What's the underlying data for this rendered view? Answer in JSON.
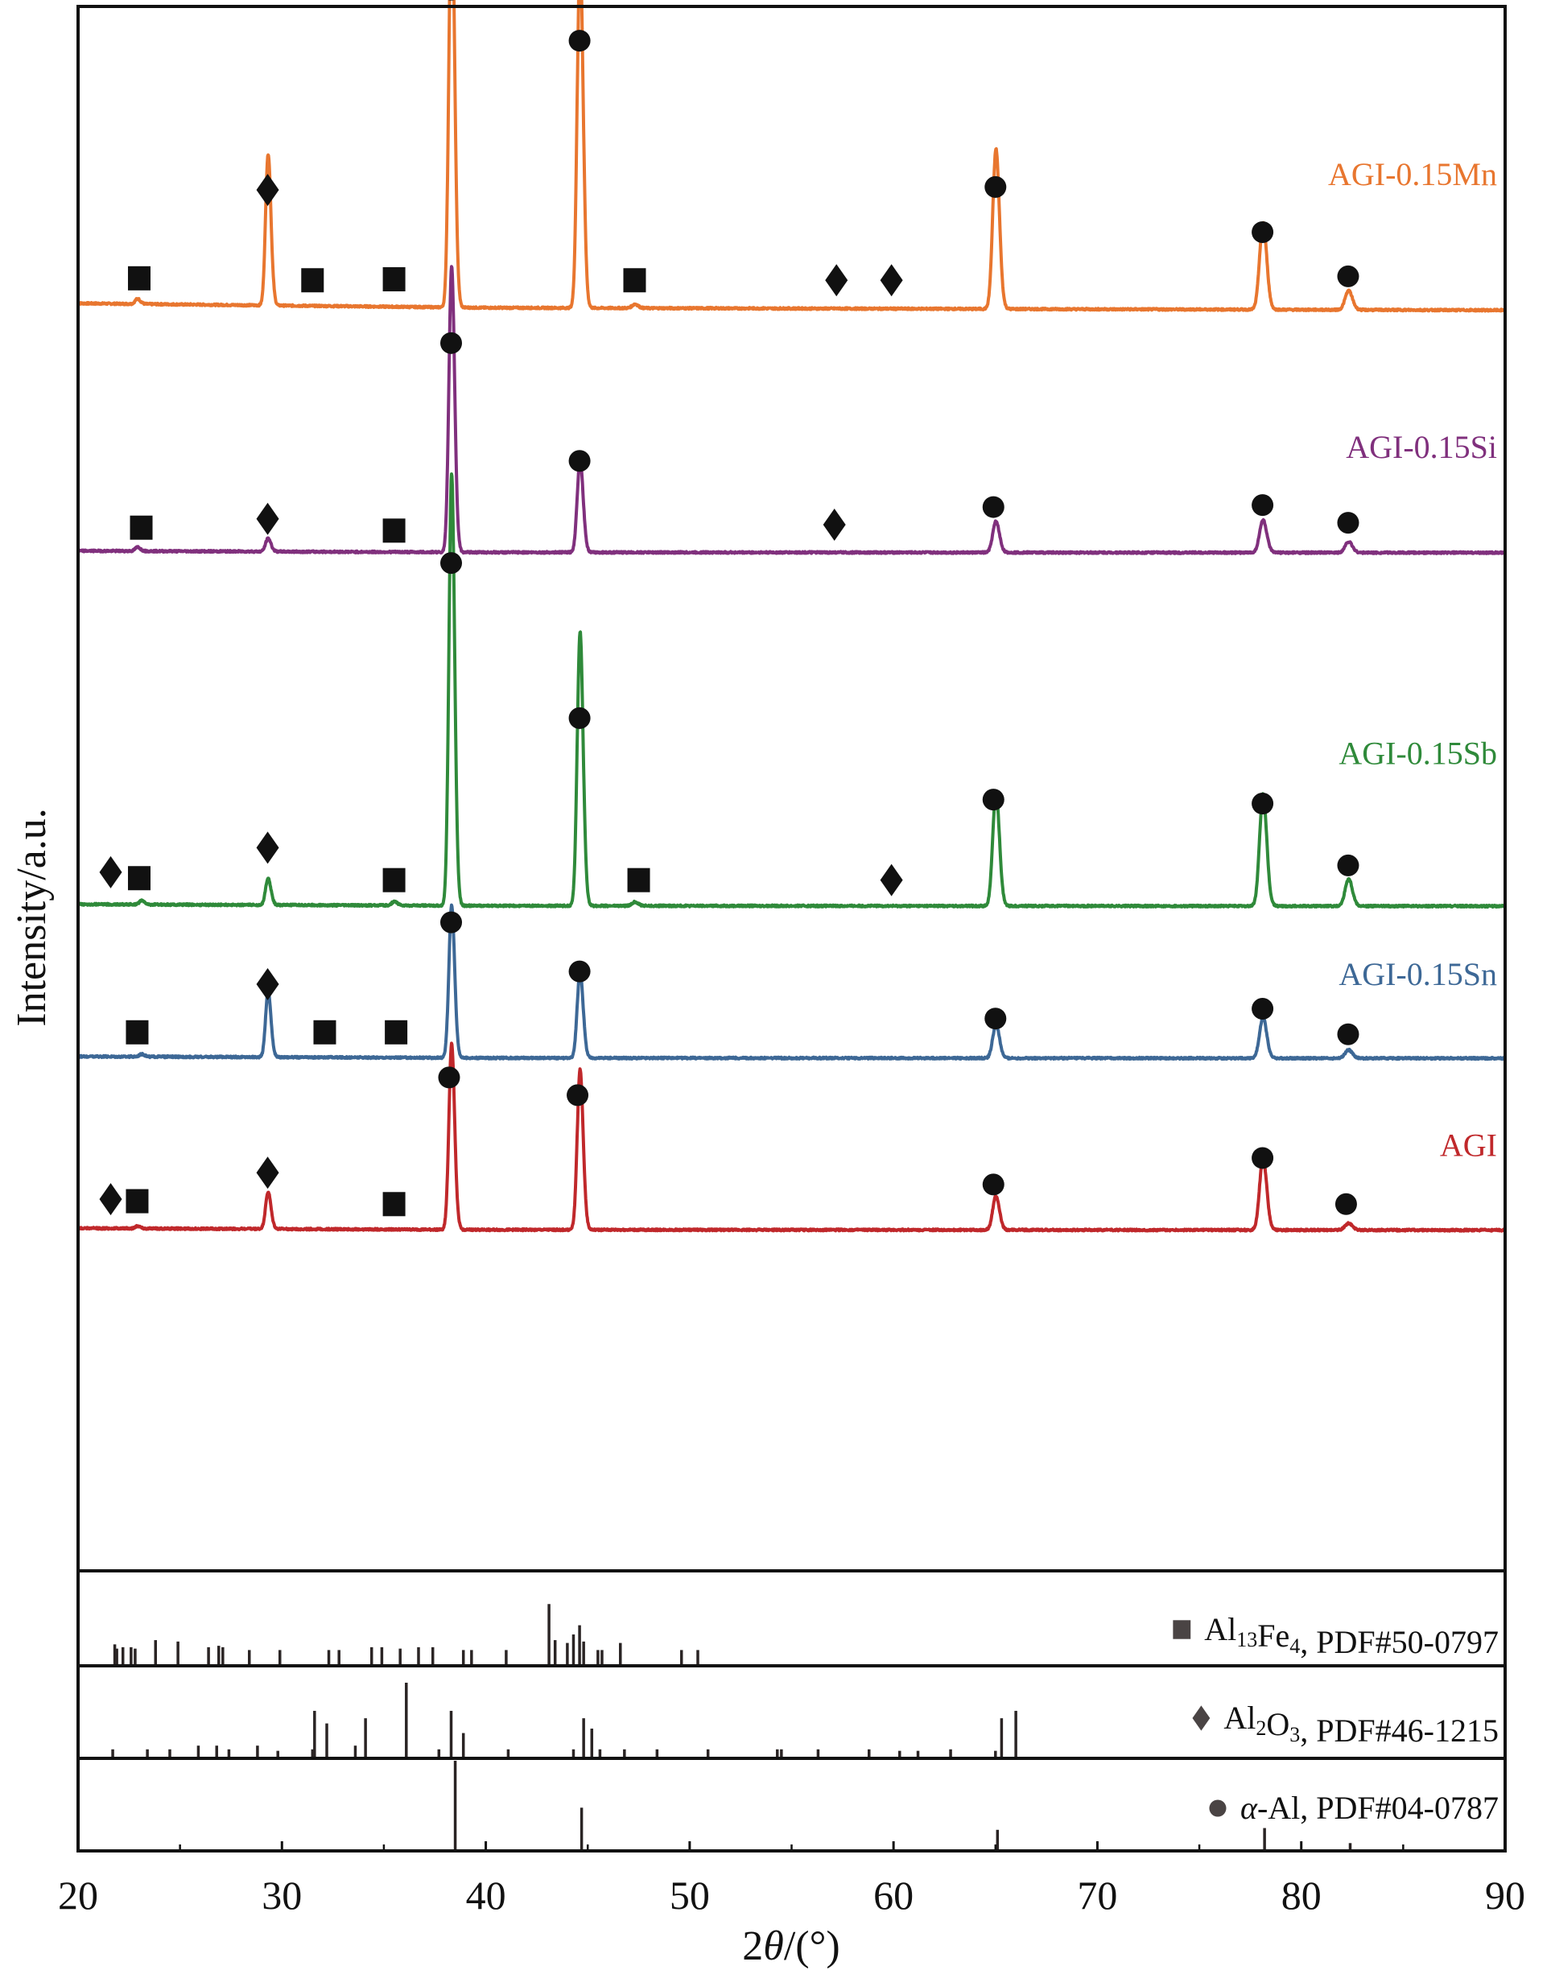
{
  "chart_data": {
    "type": "line",
    "title": "",
    "xlabel": "2θ/(°)",
    "xlabel_parts": {
      "pre": "2",
      "italic": "θ",
      "post": "/(°)"
    },
    "ylabel": "Intensity/a.u.",
    "xlim": [
      20,
      90
    ],
    "x_ticks": [
      20,
      30,
      40,
      50,
      60,
      70,
      80,
      90
    ],
    "y_ticks": [],
    "grid": false,
    "legend": "none; series labelled inline at right of each trace; phase keys in bottom reference panels",
    "series": [
      {
        "name": "AGI-0.15Mn",
        "color": "#e8762f",
        "baseline_offset": 4,
        "slope": -0.35,
        "peaks": [
          {
            "x": 22.9,
            "h": 0.4
          },
          {
            "x": 29.3,
            "h": 11.5
          },
          {
            "x": 38.3,
            "h": 31.5
          },
          {
            "x": 44.6,
            "h": 26.5
          },
          {
            "x": 47.3,
            "h": 0.3
          },
          {
            "x": 65.0,
            "h": 11.8
          },
          {
            "x": 78.1,
            "h": 6.4
          },
          {
            "x": 82.3,
            "h": 1.4
          }
        ],
        "markers": [
          {
            "type": "square",
            "x": 23.0,
            "y": 2.9
          },
          {
            "type": "diamond",
            "x": 29.3,
            "y": 11.9
          },
          {
            "type": "square",
            "x": 31.5,
            "y": 2.7
          },
          {
            "type": "square",
            "x": 35.5,
            "y": 2.8
          },
          {
            "type": "circle",
            "x": 38.3,
            "y": 32.3
          },
          {
            "type": "circle",
            "x": 44.6,
            "y": 27.1
          },
          {
            "type": "square",
            "x": 47.3,
            "y": 2.7
          },
          {
            "type": "diamond",
            "x": 57.2,
            "y": 2.7
          },
          {
            "type": "diamond",
            "x": 59.9,
            "y": 2.7
          },
          {
            "type": "circle",
            "x": 65.0,
            "y": 12.2
          },
          {
            "type": "circle",
            "x": 78.1,
            "y": 7.6
          },
          {
            "type": "circle",
            "x": 82.3,
            "y": 3.1
          }
        ]
      },
      {
        "name": "AGI-0.15Si",
        "color": "#80307d",
        "baseline_offset": -21,
        "slope": -0.05,
        "peaks": [
          {
            "x": 22.9,
            "h": 0.3
          },
          {
            "x": 29.3,
            "h": 1.0
          },
          {
            "x": 38.3,
            "h": 21.5
          },
          {
            "x": 44.6,
            "h": 7.0
          },
          {
            "x": 65.0,
            "h": 2.3
          },
          {
            "x": 78.1,
            "h": 2.4
          },
          {
            "x": 82.3,
            "h": 0.8
          }
        ],
        "markers": [
          {
            "type": "square",
            "x": 23.1,
            "y": 2.5
          },
          {
            "type": "diamond",
            "x": 29.3,
            "y": 3.4
          },
          {
            "type": "square",
            "x": 35.5,
            "y": 2.2
          },
          {
            "type": "circle",
            "x": 38.3,
            "y": 21.3
          },
          {
            "type": "circle",
            "x": 44.6,
            "y": 9.3
          },
          {
            "type": "diamond",
            "x": 57.1,
            "y": 2.8
          },
          {
            "type": "circle",
            "x": 64.9,
            "y": 4.6
          },
          {
            "type": "circle",
            "x": 78.1,
            "y": 4.8
          },
          {
            "type": "circle",
            "x": 82.3,
            "y": 3.0
          }
        ]
      },
      {
        "name": "AGI-0.15Sb",
        "color": "#2f8a3a",
        "baseline_offset": -57,
        "slope": -0.05,
        "peaks": [
          {
            "x": 23.1,
            "h": 0.3
          },
          {
            "x": 29.3,
            "h": 2.0
          },
          {
            "x": 35.5,
            "h": 0.3
          },
          {
            "x": 38.3,
            "h": 32.5
          },
          {
            "x": 44.6,
            "h": 20.5
          },
          {
            "x": 47.3,
            "h": 0.3
          },
          {
            "x": 65.0,
            "h": 8.5
          },
          {
            "x": 78.1,
            "h": 8.2
          },
          {
            "x": 82.3,
            "h": 2.0
          }
        ],
        "markers": [
          {
            "type": "diamond",
            "x": 21.6,
            "y": 3.4
          },
          {
            "type": "square",
            "x": 23.0,
            "y": 2.8
          },
          {
            "type": "diamond",
            "x": 29.3,
            "y": 5.9
          },
          {
            "type": "square",
            "x": 35.5,
            "y": 2.6
          },
          {
            "type": "circle",
            "x": 38.3,
            "y": 34.9
          },
          {
            "type": "circle",
            "x": 44.6,
            "y": 19.1
          },
          {
            "type": "square",
            "x": 47.5,
            "y": 2.6
          },
          {
            "type": "diamond",
            "x": 59.9,
            "y": 2.6
          },
          {
            "type": "circle",
            "x": 64.9,
            "y": 10.8
          },
          {
            "type": "circle",
            "x": 78.1,
            "y": 10.4
          },
          {
            "type": "circle",
            "x": 82.3,
            "y": 4.1
          }
        ]
      },
      {
        "name": "AGI-0.15Sn",
        "color": "#3d6896",
        "baseline_offset": -72.5,
        "slope": -0.05,
        "peaks": [
          {
            "x": 23.1,
            "h": 0.2
          },
          {
            "x": 29.3,
            "h": 5.0
          },
          {
            "x": 38.3,
            "h": 11.5
          },
          {
            "x": 44.6,
            "h": 6.5
          },
          {
            "x": 65.0,
            "h": 2.5
          },
          {
            "x": 78.1,
            "h": 3.0
          },
          {
            "x": 82.3,
            "h": 0.6
          }
        ],
        "markers": [
          {
            "type": "square",
            "x": 22.9,
            "y": 2.6
          },
          {
            "type": "diamond",
            "x": 29.3,
            "y": 7.5
          },
          {
            "type": "square",
            "x": 32.1,
            "y": 2.6
          },
          {
            "type": "square",
            "x": 35.6,
            "y": 2.6
          },
          {
            "type": "circle",
            "x": 38.3,
            "y": 13.8
          },
          {
            "type": "circle",
            "x": 44.6,
            "y": 8.8
          },
          {
            "type": "circle",
            "x": 65.0,
            "y": 4.0
          },
          {
            "type": "circle",
            "x": 78.1,
            "y": 5.0
          },
          {
            "type": "circle",
            "x": 82.3,
            "y": 2.4
          }
        ]
      },
      {
        "name": "AGI",
        "color": "#c0282b",
        "baseline_offset": -90,
        "slope": -0.05,
        "peaks": [
          {
            "x": 22.9,
            "h": 0.2
          },
          {
            "x": 29.3,
            "h": 2.8
          },
          {
            "x": 38.3,
            "h": 14.0
          },
          {
            "x": 44.6,
            "h": 12.0
          },
          {
            "x": 65.0,
            "h": 2.5
          },
          {
            "x": 78.1,
            "h": 5.3
          },
          {
            "x": 82.3,
            "h": 0.5
          }
        ],
        "markers": [
          {
            "type": "diamond",
            "x": 21.6,
            "y": 3.1
          },
          {
            "type": "square",
            "x": 22.9,
            "y": 2.9
          },
          {
            "type": "diamond",
            "x": 29.3,
            "y": 5.8
          },
          {
            "type": "square",
            "x": 35.5,
            "y": 2.6
          },
          {
            "type": "circle",
            "x": 38.2,
            "y": 15.5
          },
          {
            "type": "circle",
            "x": 44.5,
            "y": 13.7
          },
          {
            "type": "circle",
            "x": 64.9,
            "y": 4.6
          },
          {
            "type": "circle",
            "x": 78.1,
            "y": 7.3
          },
          {
            "type": "circle",
            "x": 82.2,
            "y": 2.6
          }
        ]
      }
    ],
    "reference_patterns": [
      {
        "phase": "Al13Fe4",
        "pdf": "PDF#50-0797",
        "marker": "square",
        "label_parts": [
          {
            "t": "Al"
          },
          {
            "sub": "13"
          },
          {
            "t": "Fe"
          },
          {
            "sub": "4"
          },
          {
            "t": ", PDF#50-0797"
          }
        ],
        "lines": [
          [
            21.8,
            28
          ],
          [
            21.9,
            22
          ],
          [
            22.2,
            24
          ],
          [
            22.6,
            24
          ],
          [
            22.8,
            22
          ],
          [
            23.8,
            34
          ],
          [
            24.9,
            32
          ],
          [
            26.4,
            24
          ],
          [
            26.9,
            26
          ],
          [
            27.1,
            24
          ],
          [
            28.4,
            20
          ],
          [
            29.9,
            20
          ],
          [
            32.3,
            20
          ],
          [
            32.8,
            20
          ],
          [
            34.4,
            24
          ],
          [
            34.9,
            24
          ],
          [
            35.8,
            22
          ],
          [
            36.7,
            24
          ],
          [
            37.4,
            24
          ],
          [
            38.9,
            20
          ],
          [
            39.3,
            20
          ],
          [
            41.0,
            20
          ],
          [
            43.1,
            85
          ],
          [
            43.4,
            34
          ],
          [
            44.0,
            30
          ],
          [
            44.3,
            42
          ],
          [
            44.6,
            55
          ],
          [
            44.8,
            32
          ],
          [
            45.5,
            20
          ],
          [
            45.7,
            20
          ],
          [
            46.6,
            30
          ],
          [
            49.6,
            20
          ],
          [
            50.4,
            20
          ]
        ]
      },
      {
        "phase": "Al2O3",
        "pdf": "PDF#46-1215",
        "marker": "diamond",
        "label_parts": [
          {
            "t": "Al"
          },
          {
            "sub": "2"
          },
          {
            "t": "O"
          },
          {
            "sub": "3"
          },
          {
            "t": ", PDF#46-1215"
          }
        ],
        "lines": [
          [
            21.7,
            10
          ],
          [
            23.4,
            10
          ],
          [
            24.5,
            10
          ],
          [
            25.9,
            15
          ],
          [
            26.8,
            15
          ],
          [
            27.4,
            10
          ],
          [
            28.8,
            15
          ],
          [
            29.8,
            8
          ],
          [
            31.5,
            10
          ],
          [
            31.6,
            62
          ],
          [
            32.2,
            45
          ],
          [
            33.6,
            15
          ],
          [
            34.1,
            52
          ],
          [
            36.1,
            100
          ],
          [
            37.7,
            10
          ],
          [
            38.3,
            62
          ],
          [
            38.9,
            32
          ],
          [
            41.1,
            10
          ],
          [
            44.3,
            10
          ],
          [
            44.8,
            52
          ],
          [
            45.2,
            38
          ],
          [
            45.6,
            10
          ],
          [
            46.8,
            10
          ],
          [
            48.4,
            10
          ],
          [
            50.9,
            10
          ],
          [
            54.3,
            10
          ],
          [
            54.5,
            10
          ],
          [
            56.3,
            10
          ],
          [
            58.8,
            10
          ],
          [
            60.3,
            8
          ],
          [
            61.2,
            8
          ],
          [
            62.8,
            10
          ],
          [
            65.0,
            8
          ],
          [
            65.3,
            52
          ],
          [
            66.0,
            62
          ]
        ]
      },
      {
        "phase": "α-Al",
        "pdf": "PDF#04-0787",
        "marker": "circle",
        "label_parts": [
          {
            "it": "α"
          },
          {
            "t": "-Al, PDF#04-0787"
          }
        ],
        "lines": [
          [
            38.5,
            100
          ],
          [
            44.7,
            47
          ],
          [
            65.1,
            22
          ],
          [
            78.2,
            24
          ],
          [
            82.4,
            7
          ]
        ]
      }
    ]
  },
  "colors": {
    "frame": "#111111",
    "marker": "#111111",
    "ref_marker": "#4a4444",
    "ref_line": "#2a2424"
  }
}
